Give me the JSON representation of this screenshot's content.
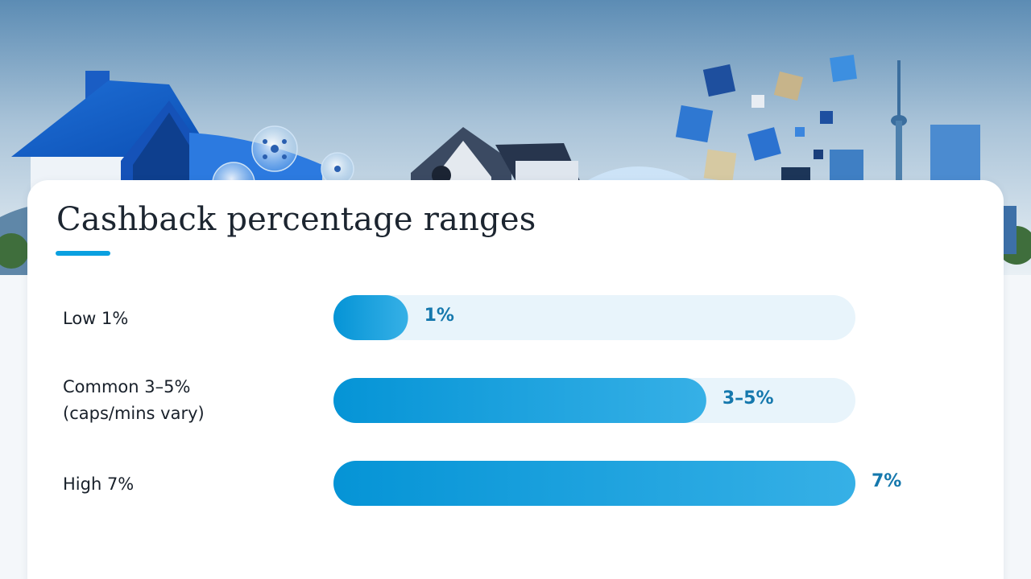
{
  "colors": {
    "accent": "#0aa0e0",
    "bar_dark": "#0594d6",
    "bar_light": "#36b0e6",
    "track": "#e8f4fb",
    "value_text": "#1578ad",
    "sky_top": "#5f8fb6",
    "sky_bottom": "#e6eef4"
  },
  "chart_data": {
    "type": "bar",
    "orientation": "horizontal",
    "title": "Cashback percentage ranges",
    "categories": [
      "Low 1%",
      "Common 3–5%\n(caps/mins vary)",
      "High 7%"
    ],
    "values": [
      1,
      5,
      7
    ],
    "value_labels": [
      "1%",
      "3–5%",
      "7%"
    ],
    "xlim": [
      0,
      7
    ],
    "grid": false,
    "legend": "none"
  },
  "banner": {
    "icons": [
      "house-icon",
      "molecule-bubble-icon",
      "cube-icon",
      "tower-icon",
      "skyline-icon"
    ]
  }
}
